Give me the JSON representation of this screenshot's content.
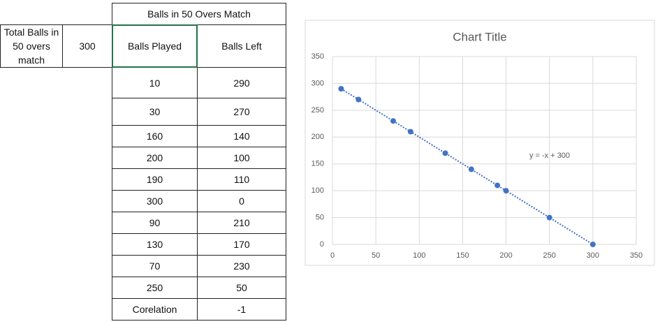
{
  "table": {
    "header": "Balls in 50 Overs Match",
    "label": "Total Balls in 50 overs match",
    "total": 300,
    "columns": [
      "Balls Played",
      "Balls Left"
    ],
    "rows": [
      [
        10,
        290
      ],
      [
        30,
        270
      ],
      [
        160,
        140
      ],
      [
        200,
        100
      ],
      [
        190,
        110
      ],
      [
        300,
        0
      ],
      [
        90,
        210
      ],
      [
        130,
        170
      ],
      [
        70,
        230
      ],
      [
        250,
        50
      ],
      [
        "Corelation",
        -1
      ]
    ]
  },
  "chart_data": {
    "type": "scatter",
    "title": "Chart Title",
    "x": [
      10,
      30,
      160,
      200,
      190,
      300,
      90,
      130,
      70,
      250
    ],
    "series": [
      {
        "color": "#4472c4",
        "values": [
          290,
          270,
          140,
          100,
          110,
          0,
          210,
          170,
          230,
          50
        ]
      }
    ],
    "trendline_label": "y = -x + 300",
    "xlim": [
      0,
      350
    ],
    "xticks": [
      0,
      50,
      100,
      150,
      200,
      250,
      300,
      350
    ],
    "ylim": [
      0,
      350
    ],
    "yticks": [
      0,
      50,
      100,
      150,
      200,
      250,
      300,
      350
    ],
    "grid": true
  }
}
